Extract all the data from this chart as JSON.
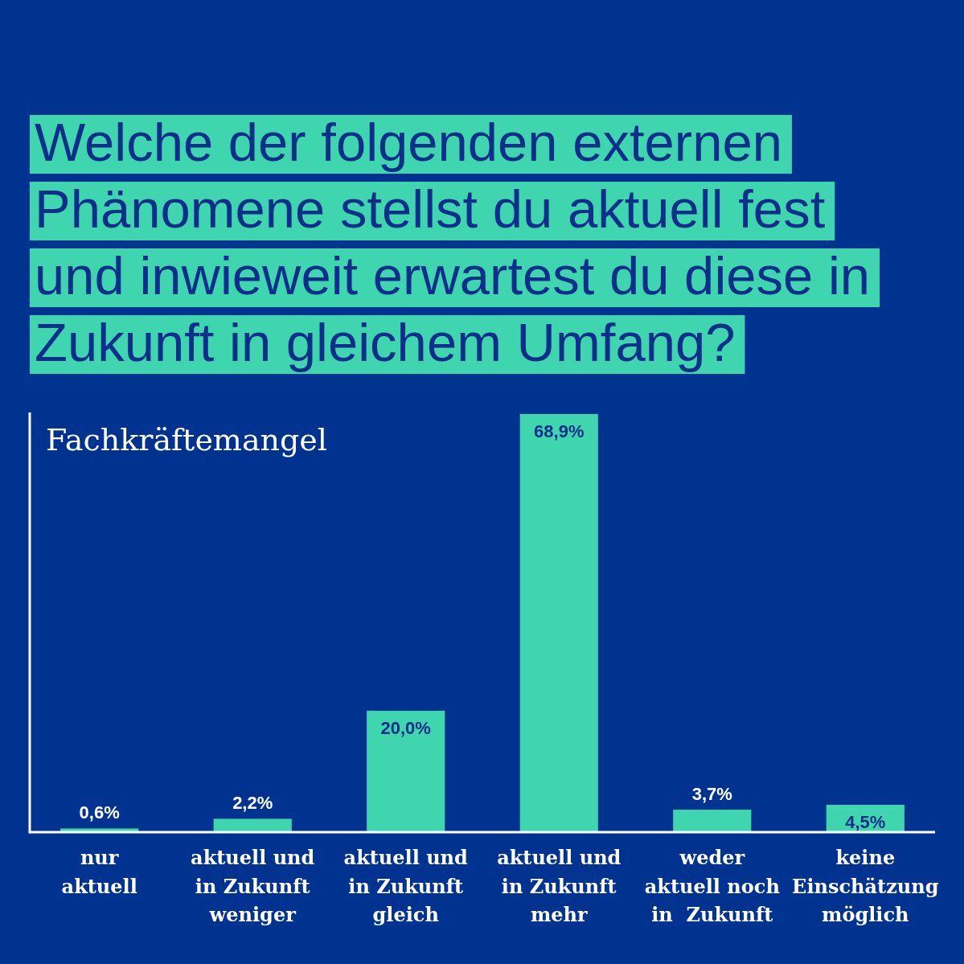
{
  "chart_data": {
    "type": "bar",
    "title": "Welche der folgenden externen\nPhänomene stellst du aktuell fest\nund inwieweit erwartest du diese in\nZukunft in gleichem Umfang?",
    "subtitle": "Fachkräftemangel",
    "categories": [
      "nur\naktuell",
      "aktuell und\nin Zukunft\nweniger",
      "aktuell und\nin Zukunft\ngleich",
      "aktuell und\nin Zukunft\nmehr",
      "weder\naktuell noch\nin  Zukunft",
      "keine\nEinschätzung\nmöglich"
    ],
    "values": [
      0.6,
      2.2,
      20.0,
      68.9,
      3.7,
      4.5
    ],
    "value_labels": [
      "0,6%",
      "2,2%",
      "20,0%",
      "68,9%",
      "3,7%",
      "4,5%"
    ],
    "color": "#3ed5af",
    "tick_labels": "x"
  }
}
